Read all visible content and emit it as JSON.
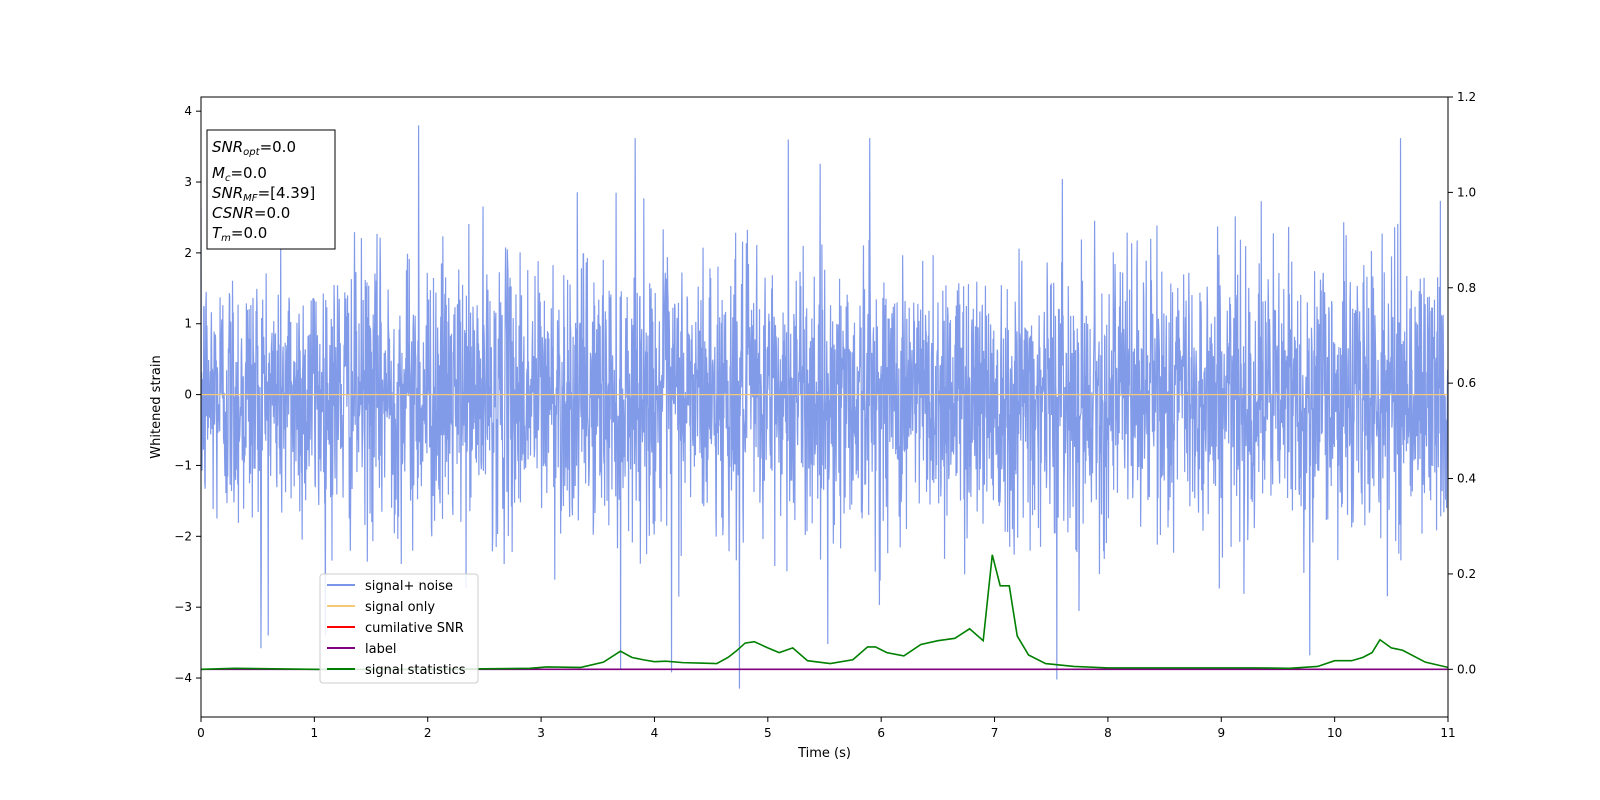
{
  "chart_data": {
    "type": "line",
    "xlabel": "Time (s)",
    "ylabel": "Whitened strain",
    "xlim": [
      0,
      11
    ],
    "ylim_left": [
      -4.55,
      4.2
    ],
    "ylim_right": [
      -0.1,
      1.2
    ],
    "x_ticks": [
      "0",
      "1",
      "2",
      "3",
      "4",
      "5",
      "6",
      "7",
      "8",
      "9",
      "10",
      "11"
    ],
    "y_ticks_left": [
      "4",
      "3",
      "2",
      "1",
      "0",
      "−1",
      "−2",
      "−3",
      "−4"
    ],
    "y_ticks_right": [
      "1.2",
      "1.0",
      "0.8",
      "0.6",
      "0.4",
      "0.2",
      "0.0"
    ],
    "info_box": {
      "snr_opt": {
        "main": "SNR",
        "sub": "opt",
        "value": "=0.0"
      },
      "mc": {
        "main": "M",
        "sub": "c",
        "value": "=0.0"
      },
      "snr_mf": {
        "main": "SNR",
        "sub": "MF",
        "value": "=[4.39]"
      },
      "csnr": {
        "main": "CSNR",
        "value": "=0.0"
      },
      "tm": {
        "main": "T",
        "sub": "m",
        "value": "=0.0"
      }
    },
    "legend": {
      "placement": "lower-left",
      "entries": [
        {
          "label": "signal+ noise",
          "color": "#7b96e8"
        },
        {
          "label": "signal only",
          "color": "#f5c97a"
        },
        {
          "label": "cumilative SNR",
          "color": "#ff0000"
        },
        {
          "label": "label",
          "color": "#800080"
        },
        {
          "label": "signal statistics",
          "color": "#008000"
        }
      ]
    },
    "series": [
      {
        "name": "signal+ noise",
        "axis": "left",
        "color": "#7b96e8",
        "description_stats": {
          "mean": 0,
          "std": 0.95,
          "min": -4.15,
          "max": 3.8
        },
        "peaks": [
          {
            "x": 1.92,
            "y": 3.8
          },
          {
            "x": 3.83,
            "y": 3.62
          },
          {
            "x": 5.9,
            "y": 3.62
          },
          {
            "x": 5.18,
            "y": 3.6
          },
          {
            "x": 10.58,
            "y": 3.62
          },
          {
            "x": 4.75,
            "y": -4.15
          },
          {
            "x": 7.55,
            "y": -4.02
          },
          {
            "x": 4.15,
            "y": -3.92
          },
          {
            "x": 3.7,
            "y": -3.88
          },
          {
            "x": 9.78,
            "y": -3.68
          },
          {
            "x": 0.53,
            "y": -3.58
          },
          {
            "x": 5.53,
            "y": -3.52
          }
        ]
      },
      {
        "name": "signal only",
        "axis": "left",
        "color": "#f5c97a",
        "x": [
          0,
          11
        ],
        "y": [
          0,
          0
        ]
      },
      {
        "name": "label",
        "axis": "right",
        "color": "#800080",
        "x": [
          0,
          11
        ],
        "y": [
          0,
          0
        ]
      },
      {
        "name": "signal statistics",
        "axis": "right",
        "color": "#008000",
        "x": [
          0,
          0.3,
          1.0,
          2.0,
          2.9,
          3.05,
          3.35,
          3.55,
          3.7,
          3.8,
          3.9,
          4.0,
          4.1,
          4.25,
          4.4,
          4.55,
          4.65,
          4.72,
          4.8,
          4.88,
          5.0,
          5.1,
          5.22,
          5.35,
          5.55,
          5.75,
          5.88,
          5.95,
          6.05,
          6.2,
          6.35,
          6.5,
          6.65,
          6.78,
          6.9,
          6.98,
          7.05,
          7.13,
          7.2,
          7.3,
          7.45,
          7.7,
          8.0,
          8.3,
          8.6,
          9.0,
          9.3,
          9.6,
          9.85,
          10.0,
          10.15,
          10.25,
          10.33,
          10.4,
          10.5,
          10.6,
          10.8,
          11.0
        ],
        "y": [
          0.0,
          0.002,
          0.0,
          0.0,
          0.002,
          0.005,
          0.004,
          0.015,
          0.038,
          0.025,
          0.02,
          0.016,
          0.017,
          0.014,
          0.013,
          0.012,
          0.025,
          0.038,
          0.055,
          0.058,
          0.045,
          0.035,
          0.045,
          0.018,
          0.012,
          0.02,
          0.047,
          0.047,
          0.035,
          0.028,
          0.052,
          0.06,
          0.065,
          0.085,
          0.06,
          0.24,
          0.175,
          0.175,
          0.07,
          0.03,
          0.012,
          0.006,
          0.003,
          0.003,
          0.003,
          0.003,
          0.003,
          0.002,
          0.006,
          0.018,
          0.018,
          0.025,
          0.035,
          0.062,
          0.045,
          0.04,
          0.015,
          0.004
        ]
      }
    ]
  }
}
